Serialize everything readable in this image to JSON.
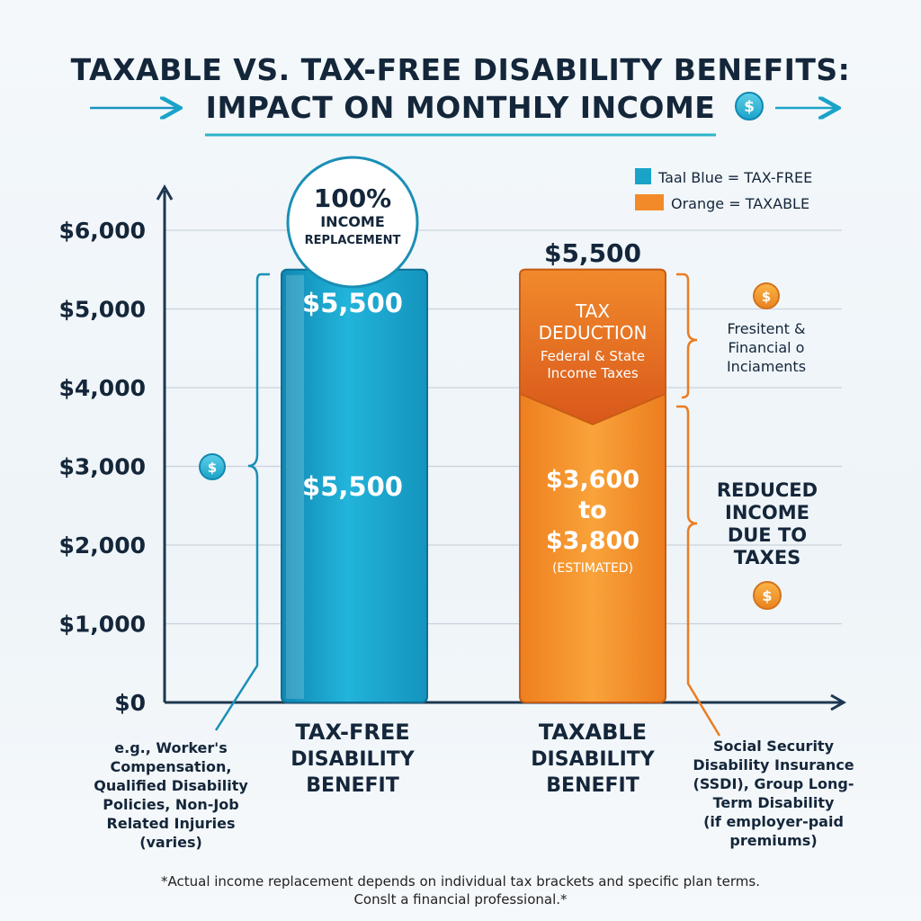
{
  "title": {
    "line1": "TAXABLE VS. TAX-FREE DISABILITY BENEFITS:",
    "line2": "IMPACT ON MONTHLY INCOME"
  },
  "legend": [
    {
      "label": "Taal Blue = TAX-FREE",
      "color": "#1aa3c8"
    },
    {
      "label": "Orange = TAXABLE",
      "color": "#f28a2a"
    }
  ],
  "chart_data": {
    "type": "bar",
    "categories": [
      "TAX-FREE DISABILITY BENEFIT",
      "TAXABLE DISABILITY BENEFIT"
    ],
    "category_lines": [
      [
        "TAX-FREE",
        "DISABILITY",
        "BENEFIT"
      ],
      [
        "TAXABLE",
        "DISABILITY",
        "BENEFIT"
      ]
    ],
    "values": [
      5500,
      5500
    ],
    "net_after_tax_estimated": [
      3600,
      3800
    ],
    "tax_deduction_boundary": 3900,
    "yticks": [
      "$0",
      "$1,000",
      "$2,000",
      "$3,000",
      "$4,000",
      "$5,000",
      "$6,000"
    ],
    "ytick_values": [
      0,
      1000,
      2000,
      3000,
      4000,
      5000,
      6000
    ],
    "ylim": [
      0,
      6500
    ],
    "grid": true,
    "legend_position": "top-right",
    "colors": {
      "taxfree": "#1aa3c8",
      "taxable": "#f28a2a",
      "deduction": "#e0671f"
    }
  },
  "labels": {
    "taxfree_top": "$5,500",
    "taxfree_mid": "$5,500",
    "taxable_top": "$5,500",
    "deduction_title_1": "TAX",
    "deduction_title_2": "DEDUCTION",
    "deduction_sub_1": "Federal & State",
    "deduction_sub_2": "Income Taxes",
    "net_line_1": "$3,600",
    "net_line_2": "to",
    "net_line_3": "$3,800",
    "net_line_4": "(ESTIMATED)"
  },
  "badge": {
    "line1": "100%",
    "line2": "INCOME",
    "line3": "REPLACEMENT"
  },
  "annotations": {
    "deduction_note": [
      "Fresitent &",
      "Financial o",
      "Inciaments"
    ],
    "reduced": [
      "REDUCED",
      "INCOME",
      "DUE TO",
      "TAXES"
    ],
    "taxfree_examples": [
      "e.g., Worker's",
      "Compensation,",
      "Qualified Disability",
      "Policies, Non-Job",
      "Related Injuries",
      "(varies)"
    ],
    "taxable_examples": [
      "Social Security",
      "Disability Insurance",
      "(SSDI), Group Long-",
      "Term Disability",
      "(if employer-paid",
      "premiums)"
    ],
    "dollar_symbol": "$"
  },
  "footnote": {
    "line1": "*Actual income replacement depends on individual tax brackets and specific plan terms.",
    "line2": "Conslt a financial professional.*"
  }
}
